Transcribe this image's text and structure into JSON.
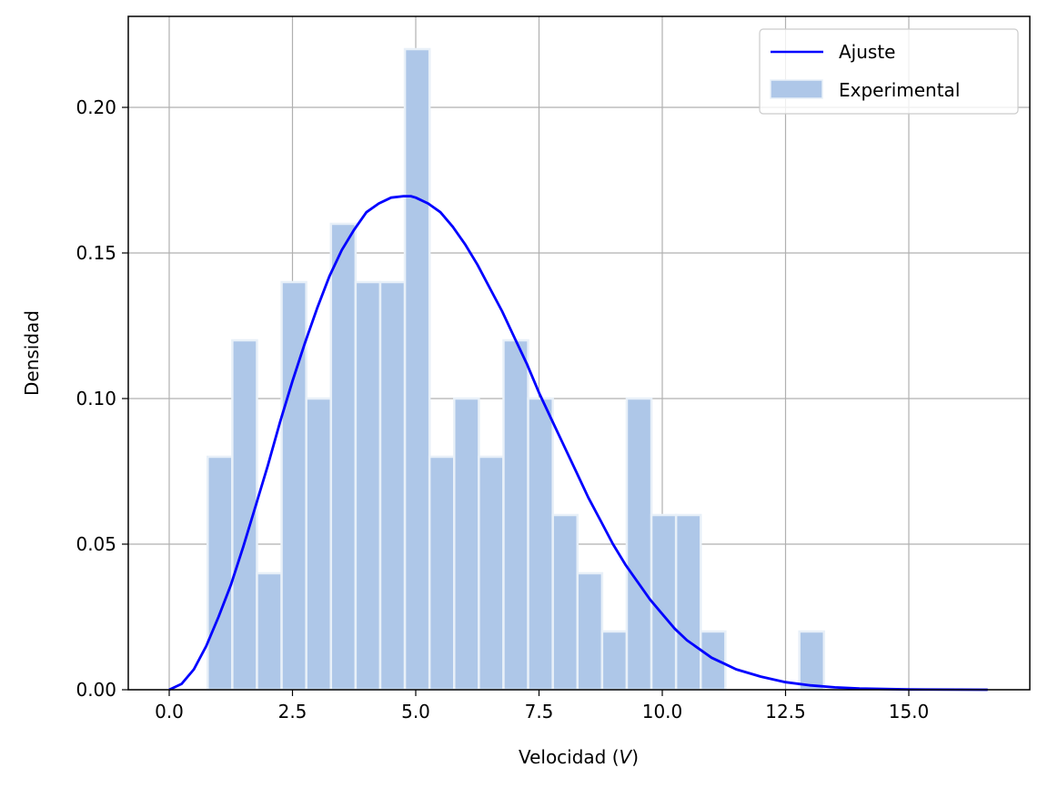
{
  "chart_data": {
    "type": "histogram",
    "title": "",
    "xlabel": "Velocidad (",
    "xlabel_var": "V",
    "xlabel_suffix": ")",
    "ylabel": "Densidad",
    "xlim": [
      -0.83,
      17.45
    ],
    "ylim": [
      0,
      0.231
    ],
    "grid": true,
    "legend_position": "top-right",
    "xticks": [
      0.0,
      2.5,
      5.0,
      7.5,
      10.0,
      12.5,
      15.0
    ],
    "xtick_labels": [
      "0.0",
      "2.5",
      "5.0",
      "7.5",
      "10.0",
      "12.5",
      "15.0"
    ],
    "yticks": [
      0.0,
      0.05,
      0.1,
      0.15,
      0.2
    ],
    "ytick_labels": [
      "0.00",
      "0.05",
      "0.10",
      "0.15",
      "0.20"
    ],
    "histogram": {
      "name": "Experimental",
      "color": "#aec7e8",
      "edge_color": "#e8f0f8",
      "bin_width": 0.5,
      "bins": [
        {
          "start": 0.78,
          "density": 0.08
        },
        {
          "start": 1.28,
          "density": 0.12
        },
        {
          "start": 1.78,
          "density": 0.04
        },
        {
          "start": 2.28,
          "density": 0.14
        },
        {
          "start": 2.78,
          "density": 0.1
        },
        {
          "start": 3.28,
          "density": 0.16
        },
        {
          "start": 3.78,
          "density": 0.14
        },
        {
          "start": 4.28,
          "density": 0.14
        },
        {
          "start": 4.78,
          "density": 0.22
        },
        {
          "start": 5.28,
          "density": 0.08
        },
        {
          "start": 5.78,
          "density": 0.1
        },
        {
          "start": 6.28,
          "density": 0.08
        },
        {
          "start": 6.78,
          "density": 0.12
        },
        {
          "start": 7.28,
          "density": 0.1
        },
        {
          "start": 7.78,
          "density": 0.06
        },
        {
          "start": 8.28,
          "density": 0.04
        },
        {
          "start": 8.78,
          "density": 0.02
        },
        {
          "start": 9.28,
          "density": 0.1
        },
        {
          "start": 9.78,
          "density": 0.06
        },
        {
          "start": 10.28,
          "density": 0.06
        },
        {
          "start": 10.78,
          "density": 0.02
        },
        {
          "start": 12.78,
          "density": 0.02
        }
      ]
    },
    "fit": {
      "name": "Ajuste",
      "color": "#0000ff",
      "x_start": 0.0,
      "x_end": 16.6,
      "points": [
        [
          0.0,
          0.0
        ],
        [
          0.25,
          0.002
        ],
        [
          0.5,
          0.007
        ],
        [
          0.75,
          0.015
        ],
        [
          1.0,
          0.025
        ],
        [
          1.25,
          0.036
        ],
        [
          1.5,
          0.049
        ],
        [
          1.75,
          0.063
        ],
        [
          2.0,
          0.077
        ],
        [
          2.25,
          0.092
        ],
        [
          2.5,
          0.106
        ],
        [
          2.75,
          0.119
        ],
        [
          3.0,
          0.131
        ],
        [
          3.25,
          0.142
        ],
        [
          3.5,
          0.151
        ],
        [
          3.75,
          0.158
        ],
        [
          4.0,
          0.164
        ],
        [
          4.25,
          0.167
        ],
        [
          4.5,
          0.169
        ],
        [
          4.75,
          0.1695
        ],
        [
          4.9,
          0.1695
        ],
        [
          5.0,
          0.169
        ],
        [
          5.25,
          0.167
        ],
        [
          5.5,
          0.164
        ],
        [
          5.75,
          0.159
        ],
        [
          6.0,
          0.153
        ],
        [
          6.25,
          0.146
        ],
        [
          6.5,
          0.138
        ],
        [
          6.75,
          0.13
        ],
        [
          7.0,
          0.121
        ],
        [
          7.25,
          0.112
        ],
        [
          7.5,
          0.102
        ],
        [
          7.75,
          0.093
        ],
        [
          8.0,
          0.084
        ],
        [
          8.25,
          0.075
        ],
        [
          8.5,
          0.066
        ],
        [
          8.75,
          0.058
        ],
        [
          9.0,
          0.05
        ],
        [
          9.25,
          0.043
        ],
        [
          9.5,
          0.037
        ],
        [
          9.75,
          0.031
        ],
        [
          10.0,
          0.026
        ],
        [
          10.25,
          0.021
        ],
        [
          10.5,
          0.017
        ],
        [
          10.75,
          0.014
        ],
        [
          11.0,
          0.011
        ],
        [
          11.25,
          0.009
        ],
        [
          11.5,
          0.007
        ],
        [
          12.0,
          0.0045
        ],
        [
          12.5,
          0.0026
        ],
        [
          13.0,
          0.0015
        ],
        [
          13.5,
          0.0008
        ],
        [
          14.0,
          0.0004
        ],
        [
          15.0,
          0.0001
        ],
        [
          16.0,
          2e-05
        ],
        [
          16.6,
          0.0
        ]
      ]
    }
  }
}
